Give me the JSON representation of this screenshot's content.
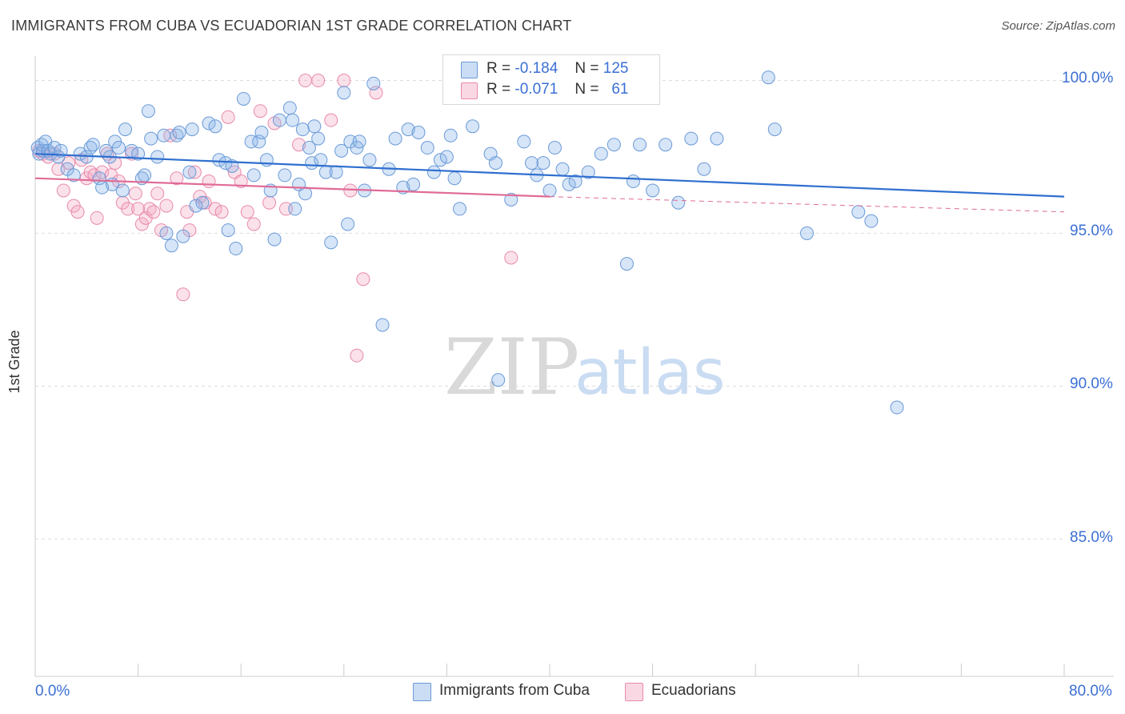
{
  "title": "IMMIGRANTS FROM CUBA VS ECUADORIAN 1ST GRADE CORRELATION CHART",
  "source": "Source: ZipAtlas.com",
  "watermark": {
    "zip": "ZIP",
    "atlas": "atlas"
  },
  "legend_stats": [
    {
      "r_label": "R =",
      "r_value": "-0.184",
      "n_label": "N =",
      "n_value": "125",
      "color": "#8ab4e8"
    },
    {
      "r_label": "R =",
      "r_value": "-0.071",
      "n_label": "N =",
      "n_value": "61",
      "color": "#f4a9c2"
    }
  ],
  "bottom_legend": [
    "Immigrants from Cuba",
    "Ecuadorians"
  ],
  "x_axis": {
    "min_label": "0.0%",
    "max_label": "80.0%"
  },
  "y_axis": {
    "label": "1st Grade",
    "ticks": [
      "100.0%",
      "95.0%",
      "90.0%",
      "85.0%"
    ]
  },
  "colors": {
    "blue_fill": "rgba(138,180,232,0.35)",
    "blue_stroke": "#6a9ad8",
    "blue_line": "#2f6fd0",
    "pink_fill": "rgba(244,169,194,0.35)",
    "pink_stroke": "#e88aab",
    "pink_line": "#e06b97",
    "axis_text": "#3b6fd4",
    "grid": "#dddddd"
  },
  "chart_data": {
    "type": "scatter",
    "xlim": [
      0,
      80
    ],
    "ylim": [
      80.5,
      100.8
    ],
    "grid": true,
    "legend_placement": "top-center",
    "series": [
      {
        "name": "Immigrants from Cuba",
        "trend": {
          "x": [
            0,
            80
          ],
          "y": [
            97.6,
            96.2
          ]
        },
        "points": [
          [
            0.2,
            97.8
          ],
          [
            0.3,
            97.6
          ],
          [
            0.5,
            97.9
          ],
          [
            0.6,
            97.7
          ],
          [
            0.8,
            98.0
          ],
          [
            1.0,
            97.7
          ],
          [
            1.2,
            97.6
          ],
          [
            1.5,
            97.8
          ],
          [
            1.8,
            97.5
          ],
          [
            2.0,
            97.7
          ],
          [
            2.5,
            97.1
          ],
          [
            3.0,
            96.9
          ],
          [
            3.5,
            97.6
          ],
          [
            4.0,
            97.5
          ],
          [
            4.3,
            97.8
          ],
          [
            4.5,
            97.9
          ],
          [
            5.0,
            96.8
          ],
          [
            5.2,
            96.5
          ],
          [
            5.5,
            97.7
          ],
          [
            5.8,
            97.5
          ],
          [
            6.0,
            96.6
          ],
          [
            6.2,
            98.0
          ],
          [
            6.5,
            97.8
          ],
          [
            6.8,
            96.4
          ],
          [
            7.0,
            98.4
          ],
          [
            7.5,
            97.7
          ],
          [
            8.0,
            97.6
          ],
          [
            8.3,
            96.8
          ],
          [
            8.5,
            96.9
          ],
          [
            8.8,
            99.0
          ],
          [
            9.0,
            98.1
          ],
          [
            9.5,
            97.5
          ],
          [
            10.0,
            98.2
          ],
          [
            10.2,
            95.0
          ],
          [
            10.6,
            94.6
          ],
          [
            11.0,
            98.2
          ],
          [
            11.2,
            98.3
          ],
          [
            11.5,
            94.9
          ],
          [
            12.0,
            97.0
          ],
          [
            12.2,
            98.4
          ],
          [
            12.5,
            95.9
          ],
          [
            13.0,
            96.0
          ],
          [
            13.5,
            98.6
          ],
          [
            14.0,
            98.5
          ],
          [
            14.3,
            97.4
          ],
          [
            14.8,
            97.3
          ],
          [
            15.0,
            95.1
          ],
          [
            15.3,
            97.2
          ],
          [
            15.6,
            94.5
          ],
          [
            16.2,
            99.4
          ],
          [
            16.8,
            98.0
          ],
          [
            17.0,
            96.9
          ],
          [
            17.4,
            98.0
          ],
          [
            17.6,
            98.3
          ],
          [
            18.0,
            97.4
          ],
          [
            18.3,
            96.4
          ],
          [
            18.6,
            94.8
          ],
          [
            19.0,
            98.7
          ],
          [
            19.4,
            96.9
          ],
          [
            19.8,
            99.1
          ],
          [
            20.0,
            98.7
          ],
          [
            20.2,
            95.8
          ],
          [
            20.5,
            96.6
          ],
          [
            20.8,
            98.4
          ],
          [
            21.0,
            96.3
          ],
          [
            21.3,
            97.8
          ],
          [
            21.5,
            97.3
          ],
          [
            21.7,
            98.5
          ],
          [
            22.0,
            98.1
          ],
          [
            22.2,
            97.4
          ],
          [
            22.6,
            97.0
          ],
          [
            23.0,
            94.7
          ],
          [
            23.4,
            97.0
          ],
          [
            23.8,
            97.7
          ],
          [
            24.0,
            99.6
          ],
          [
            24.3,
            95.3
          ],
          [
            24.5,
            98.0
          ],
          [
            25.0,
            97.8
          ],
          [
            25.2,
            98.0
          ],
          [
            25.6,
            96.4
          ],
          [
            26.0,
            97.4
          ],
          [
            26.3,
            99.9
          ],
          [
            27.0,
            92.0
          ],
          [
            27.5,
            97.1
          ],
          [
            28.0,
            98.1
          ],
          [
            28.6,
            96.5
          ],
          [
            29.0,
            98.4
          ],
          [
            29.4,
            96.6
          ],
          [
            29.8,
            98.3
          ],
          [
            30.5,
            97.8
          ],
          [
            31.0,
            97.0
          ],
          [
            31.5,
            97.4
          ],
          [
            32.0,
            97.5
          ],
          [
            32.3,
            98.2
          ],
          [
            32.6,
            96.8
          ],
          [
            33.0,
            95.8
          ],
          [
            34.0,
            98.5
          ],
          [
            35.0,
            100.0
          ],
          [
            35.4,
            97.6
          ],
          [
            35.8,
            97.3
          ],
          [
            36.0,
            90.2
          ],
          [
            37.0,
            96.1
          ],
          [
            38.0,
            98.0
          ],
          [
            38.6,
            97.3
          ],
          [
            39.0,
            96.9
          ],
          [
            39.5,
            97.3
          ],
          [
            40.0,
            96.4
          ],
          [
            40.4,
            97.8
          ],
          [
            41.0,
            97.1
          ],
          [
            41.5,
            96.6
          ],
          [
            42.0,
            96.7
          ],
          [
            43.0,
            97.0
          ],
          [
            44.0,
            97.6
          ],
          [
            45.0,
            97.9
          ],
          [
            46.0,
            94.0
          ],
          [
            46.5,
            96.7
          ],
          [
            47.0,
            97.9
          ],
          [
            48.0,
            96.4
          ],
          [
            49.0,
            97.9
          ],
          [
            50.0,
            96.0
          ],
          [
            51.0,
            98.1
          ],
          [
            52.0,
            97.1
          ],
          [
            53.0,
            98.1
          ],
          [
            57.0,
            100.1
          ],
          [
            57.5,
            98.4
          ],
          [
            60.0,
            95.0
          ],
          [
            64.0,
            95.7
          ],
          [
            65.0,
            95.4
          ],
          [
            67.0,
            89.3
          ]
        ]
      },
      {
        "name": "Ecuadorians",
        "trend": {
          "x": [
            40,
            80
          ],
          "y": [
            96.2,
            95.7
          ],
          "solid_x": [
            0,
            40
          ],
          "solid_y": [
            96.8,
            96.2
          ]
        },
        "points": [
          [
            0.3,
            97.7
          ],
          [
            0.6,
            97.6
          ],
          [
            1.0,
            97.5
          ],
          [
            1.5,
            97.6
          ],
          [
            1.8,
            97.1
          ],
          [
            2.2,
            96.4
          ],
          [
            2.6,
            97.3
          ],
          [
            3.0,
            95.9
          ],
          [
            3.3,
            95.7
          ],
          [
            3.6,
            97.4
          ],
          [
            4.0,
            96.8
          ],
          [
            4.3,
            97.0
          ],
          [
            4.6,
            96.9
          ],
          [
            4.8,
            95.5
          ],
          [
            5.2,
            97.0
          ],
          [
            5.6,
            97.6
          ],
          [
            5.9,
            96.9
          ],
          [
            6.2,
            97.3
          ],
          [
            6.5,
            96.7
          ],
          [
            6.8,
            96.0
          ],
          [
            7.2,
            95.8
          ],
          [
            7.5,
            97.6
          ],
          [
            7.8,
            96.3
          ],
          [
            8.0,
            95.8
          ],
          [
            8.3,
            95.3
          ],
          [
            8.6,
            95.5
          ],
          [
            8.9,
            95.8
          ],
          [
            9.2,
            95.7
          ],
          [
            9.5,
            96.3
          ],
          [
            9.8,
            95.1
          ],
          [
            10.2,
            95.9
          ],
          [
            10.5,
            98.2
          ],
          [
            11.0,
            96.8
          ],
          [
            11.5,
            93.0
          ],
          [
            11.8,
            95.7
          ],
          [
            12.0,
            95.1
          ],
          [
            12.4,
            97.0
          ],
          [
            12.8,
            96.2
          ],
          [
            13.2,
            96.0
          ],
          [
            13.5,
            96.7
          ],
          [
            14.0,
            95.8
          ],
          [
            14.5,
            95.7
          ],
          [
            15.0,
            98.8
          ],
          [
            15.5,
            97.0
          ],
          [
            16.0,
            96.7
          ],
          [
            16.5,
            95.7
          ],
          [
            17.0,
            95.3
          ],
          [
            17.5,
            99.0
          ],
          [
            18.2,
            96.0
          ],
          [
            18.6,
            98.6
          ],
          [
            19.5,
            95.8
          ],
          [
            20.5,
            97.9
          ],
          [
            21.0,
            100.0
          ],
          [
            22.0,
            100.0
          ],
          [
            23.0,
            98.7
          ],
          [
            24.0,
            100.0
          ],
          [
            24.5,
            96.4
          ],
          [
            25.0,
            91.0
          ],
          [
            25.5,
            93.5
          ],
          [
            26.5,
            99.6
          ],
          [
            37.0,
            94.2
          ]
        ]
      }
    ]
  }
}
